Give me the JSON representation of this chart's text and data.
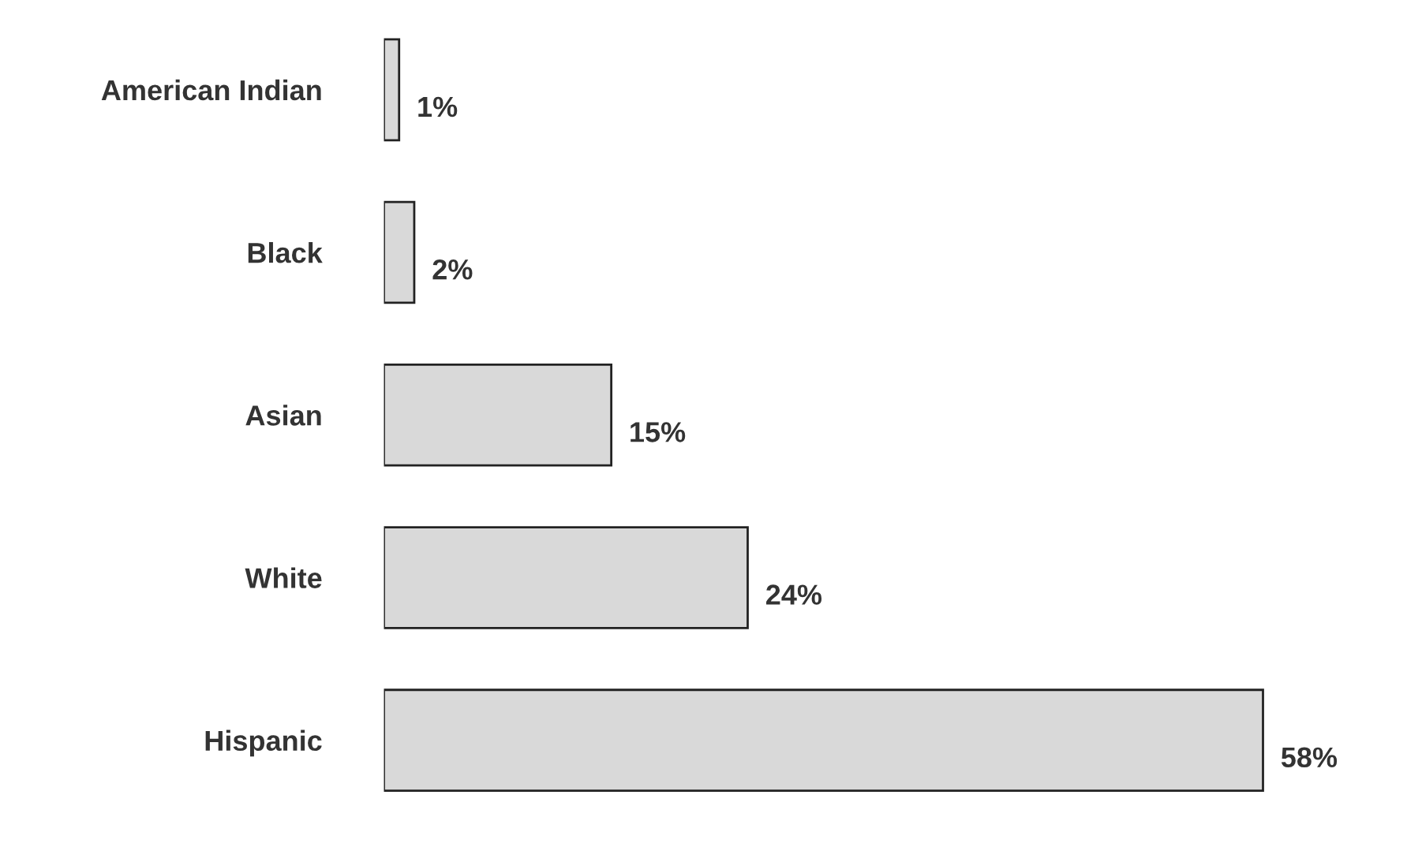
{
  "chart_data": {
    "type": "bar",
    "orientation": "horizontal",
    "categories": [
      "American Indian",
      "Black",
      "Asian",
      "White",
      "Hispanic"
    ],
    "values": [
      1,
      2,
      15,
      24,
      58
    ],
    "value_labels": [
      "1%",
      "2%",
      "15%",
      "24%",
      "58%"
    ],
    "color": "#d9d9d9",
    "grid": false,
    "legend": false
  }
}
